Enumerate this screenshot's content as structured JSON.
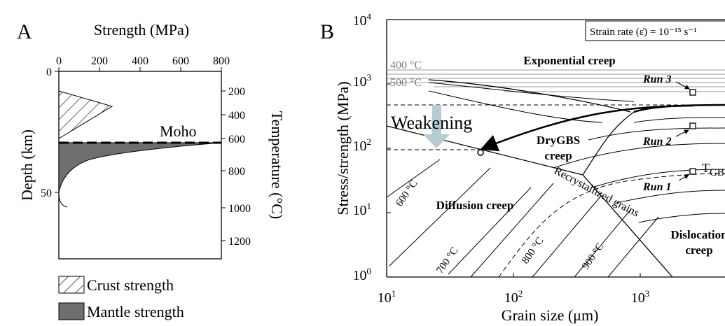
{
  "panel_a": {
    "label": "A",
    "top_axis_title": "Strength (MPa)",
    "top_ticks": [
      "0",
      "200",
      "400",
      "600",
      "800"
    ],
    "left_axis_title": "Depth (km)",
    "left_ticks": [
      "0",
      "50"
    ],
    "right_axis_title": "Temperature (°C)",
    "right_ticks": [
      "200",
      "400",
      "600",
      "800",
      "1000",
      "1200"
    ],
    "moho_label": "Moho",
    "legend": [
      {
        "label": "Crust strength",
        "swatch": "hatched"
      },
      {
        "label": "Mantle strength",
        "swatch": "gray-fill"
      }
    ],
    "colors": {
      "mantle_fill": "#6e6e6e"
    }
  },
  "panel_b": {
    "label": "B",
    "strain_rate_box": "Strain rate (ε̇) = 10⁻¹⁵ s⁻¹",
    "y_axis_title": "Stress/strength (MPa)",
    "x_axis_title": "Grain size (μm)",
    "x_ticks": [
      {
        "base": "10",
        "exp": "1"
      },
      {
        "base": "10",
        "exp": "2"
      },
      {
        "base": "10",
        "exp": "3"
      }
    ],
    "y_ticks": [
      {
        "base": "10",
        "exp": "0"
      },
      {
        "base": "10",
        "exp": "1"
      },
      {
        "base": "10",
        "exp": "2"
      },
      {
        "base": "10",
        "exp": "3"
      },
      {
        "base": "10",
        "exp": "4"
      }
    ],
    "regions": {
      "exponential": "Exponential creep",
      "drygbs_1": "DryGBS",
      "drygbs_2": "creep",
      "diffusion": "Diffusion creep",
      "dislocation_1": "Dislocation",
      "dislocation_2": "creep",
      "recrystallized": "Recrystallized grains"
    },
    "isotherms": [
      "400 °C",
      "500 °C",
      "600 °C",
      "700 °C",
      "800 °C",
      "900 °C"
    ],
    "t_gbs": {
      "base": "T",
      "sub": "GBS"
    },
    "runs": [
      "Run 3",
      "Run 2",
      "Run 1"
    ],
    "weakening_label": "Weakening",
    "colors": {
      "weakening_arrow": "#b4cdd2",
      "isotherm_gray": "#9a9a9a"
    }
  }
}
